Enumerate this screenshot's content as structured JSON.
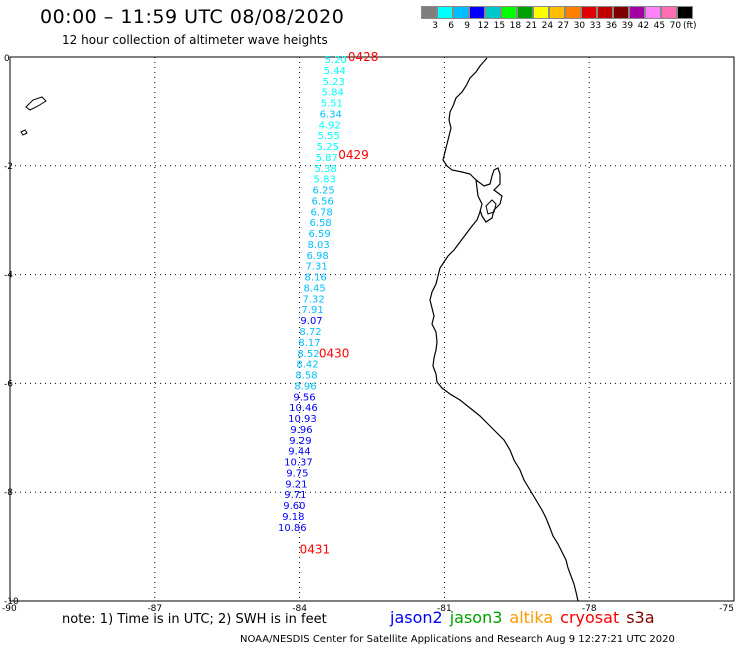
{
  "header": {
    "title": "00:00 – 11:59 UTC 08/08/2020",
    "subtitle": "12 hour collection of altimeter wave heights"
  },
  "legend": {
    "colors": [
      "#7f7f7f",
      "#00ffff",
      "#00bfff",
      "#0000ff",
      "#00c8c8",
      "#00ff00",
      "#00a000",
      "#ffff00",
      "#ffbf00",
      "#ff7f00",
      "#e00000",
      "#c00000",
      "#800000",
      "#a000a0",
      "#ff80ff",
      "#ff6eb4",
      "#000000"
    ],
    "labels": [
      "3",
      "6",
      "9",
      "12",
      "15",
      "18",
      "21",
      "24",
      "27",
      "30",
      "33",
      "36",
      "39",
      "42",
      "45",
      "70"
    ],
    "unit": "(ft)"
  },
  "map": {
    "lon_min": -90,
    "lon_max": -75,
    "lat_min": -10,
    "lat_max": 0,
    "x_ticks": [
      {
        "value": -90,
        "label": "-90"
      },
      {
        "value": -87,
        "label": "-87"
      },
      {
        "value": -84,
        "label": "-84"
      },
      {
        "value": -81,
        "label": "-81"
      },
      {
        "value": -78,
        "label": "-78"
      },
      {
        "value": -75,
        "label": "-75"
      }
    ],
    "y_ticks": [
      {
        "value": 0,
        "label": "0"
      },
      {
        "value": -2,
        "label": "-2"
      },
      {
        "value": -4,
        "label": "-4"
      },
      {
        "value": -6,
        "label": "-6"
      },
      {
        "value": -8,
        "label": "-8"
      },
      {
        "value": -10,
        "label": "-10"
      }
    ],
    "coastline_color": "#000000",
    "time_labels": [
      {
        "text": "0428",
        "lon": -83.0,
        "lat": 0.0,
        "color": "#ff0000"
      },
      {
        "text": "0429",
        "lon": -83.2,
        "lat": -1.8,
        "color": "#ff0000"
      },
      {
        "text": "0430",
        "lon": -83.6,
        "lat": -5.45,
        "color": "#ff0000"
      },
      {
        "text": "0431",
        "lon": -84.0,
        "lat": -9.05,
        "color": "#ff0000"
      }
    ],
    "observations": [
      {
        "value": "5.20",
        "lat": 0.0,
        "color": "#00ffff"
      },
      {
        "value": "5.44",
        "lat": -0.2,
        "color": "#00ffff"
      },
      {
        "value": "5.23",
        "lat": -0.4,
        "color": "#00ffff"
      },
      {
        "value": "5.84",
        "lat": -0.6,
        "color": "#00ffff"
      },
      {
        "value": "5.51",
        "lat": -0.8,
        "color": "#00ffff"
      },
      {
        "value": "6.34",
        "lat": -1.0,
        "color": "#00bfff"
      },
      {
        "value": "4.92",
        "lat": -1.2,
        "color": "#00ffff"
      },
      {
        "value": "5.55",
        "lat": -1.4,
        "color": "#00ffff"
      },
      {
        "value": "5.25",
        "lat": -1.6,
        "color": "#00ffff"
      },
      {
        "value": "5.87",
        "lat": -1.8,
        "color": "#00ffff"
      },
      {
        "value": "5.38",
        "lat": -2.0,
        "color": "#00ffff"
      },
      {
        "value": "5.83",
        "lat": -2.2,
        "color": "#00ffff"
      },
      {
        "value": "6.25",
        "lat": -2.4,
        "color": "#00bfff"
      },
      {
        "value": "6.56",
        "lat": -2.6,
        "color": "#00bfff"
      },
      {
        "value": "6.78",
        "lat": -2.8,
        "color": "#00bfff"
      },
      {
        "value": "6.58",
        "lat": -3.0,
        "color": "#00bfff"
      },
      {
        "value": "6.59",
        "lat": -3.2,
        "color": "#00bfff"
      },
      {
        "value": "8.03",
        "lat": -3.4,
        "color": "#00bfff"
      },
      {
        "value": "6.98",
        "lat": -3.6,
        "color": "#00bfff"
      },
      {
        "value": "7.31",
        "lat": -3.8,
        "color": "#00bfff"
      },
      {
        "value": "8.16",
        "lat": -4.0,
        "color": "#00bfff"
      },
      {
        "value": "8.45",
        "lat": -4.2,
        "color": "#00bfff"
      },
      {
        "value": "7.32",
        "lat": -4.4,
        "color": "#00bfff"
      },
      {
        "value": "7.91",
        "lat": -4.6,
        "color": "#00bfff"
      },
      {
        "value": "9.07",
        "lat": -4.8,
        "color": "#0000ff"
      },
      {
        "value": "8.72",
        "lat": -5.0,
        "color": "#00bfff"
      },
      {
        "value": "8.17",
        "lat": -5.2,
        "color": "#00bfff"
      },
      {
        "value": "8.52",
        "lat": -5.4,
        "color": "#00bfff"
      },
      {
        "value": "8.42",
        "lat": -5.6,
        "color": "#00bfff"
      },
      {
        "value": "8.58",
        "lat": -5.8,
        "color": "#00bfff"
      },
      {
        "value": "8.96",
        "lat": -6.0,
        "color": "#00bfff"
      },
      {
        "value": "9.56",
        "lat": -6.2,
        "color": "#0000ff"
      },
      {
        "value": "10.46",
        "lat": -6.4,
        "color": "#0000ff"
      },
      {
        "value": "10.93",
        "lat": -6.6,
        "color": "#0000ff"
      },
      {
        "value": "9.96",
        "lat": -6.8,
        "color": "#0000ff"
      },
      {
        "value": "9.29",
        "lat": -7.0,
        "color": "#0000ff"
      },
      {
        "value": "9.44",
        "lat": -7.2,
        "color": "#0000ff"
      },
      {
        "value": "10.37",
        "lat": -7.4,
        "color": "#0000ff"
      },
      {
        "value": "9.75",
        "lat": -7.6,
        "color": "#0000ff"
      },
      {
        "value": "9.21",
        "lat": -7.8,
        "color": "#0000ff"
      },
      {
        "value": "9.71",
        "lat": -8.0,
        "color": "#0000ff"
      },
      {
        "value": "9.60",
        "lat": -8.2,
        "color": "#0000ff"
      },
      {
        "value": "9.18",
        "lat": -8.4,
        "color": "#0000ff"
      },
      {
        "value": "10.86",
        "lat": -8.6,
        "color": "#0000ff"
      }
    ]
  },
  "footer": {
    "note": "note: 1) Time is in UTC; 2) SWH is in feet",
    "satellites": [
      {
        "name": "jason2",
        "color": "#0000ff"
      },
      {
        "name": "jason3",
        "color": "#00a000"
      },
      {
        "name": "altika",
        "color": "#ff9900"
      },
      {
        "name": "cryosat",
        "color": "#ff0000"
      },
      {
        "name": "s3a",
        "color": "#800000"
      }
    ],
    "credit": "NOAA/NESDIS Center for Satellite Applications and Research    Aug  9 12:27:21 UTC 2020"
  }
}
